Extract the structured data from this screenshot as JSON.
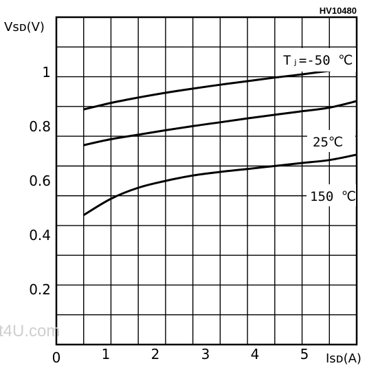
{
  "chart_data": {
    "type": "line",
    "code": "HV10480",
    "watermark": "t4U.com",
    "xlabel": "Isᴅ(A)",
    "ylabel": "Vsᴅ(V)",
    "xlim": [
      0,
      5.5
    ],
    "ylim": [
      0,
      1.1
    ],
    "x_ticks": [
      "0",
      "1",
      "2",
      "3",
      "4",
      "5"
    ],
    "y_ticks": [
      "0.2",
      "0.4",
      "0.6",
      "0.8",
      "1"
    ],
    "series": [
      {
        "name": "Tⱼ=-50 ℃",
        "x": [
          0.5,
          1,
          1.5,
          2,
          2.5,
          3,
          3.5,
          4,
          4.5,
          5,
          5.5
        ],
        "y": [
          0.79,
          0.812,
          0.83,
          0.846,
          0.86,
          0.873,
          0.885,
          0.897,
          0.908,
          0.92,
          0.932
        ]
      },
      {
        "name": "25℃",
        "x": [
          0.5,
          1,
          1.5,
          2,
          2.5,
          3,
          3.5,
          4,
          4.5,
          5,
          5.5
        ],
        "y": [
          0.67,
          0.69,
          0.705,
          0.72,
          0.734,
          0.747,
          0.76,
          0.772,
          0.784,
          0.796,
          0.818
        ]
      },
      {
        "name": "150 ℃",
        "x": [
          0.5,
          1,
          1.5,
          2,
          2.5,
          3,
          3.5,
          4,
          4.5,
          5,
          5.5
        ],
        "y": [
          0.435,
          0.49,
          0.527,
          0.55,
          0.568,
          0.58,
          0.59,
          0.6,
          0.61,
          0.62,
          0.638
        ]
      }
    ]
  }
}
